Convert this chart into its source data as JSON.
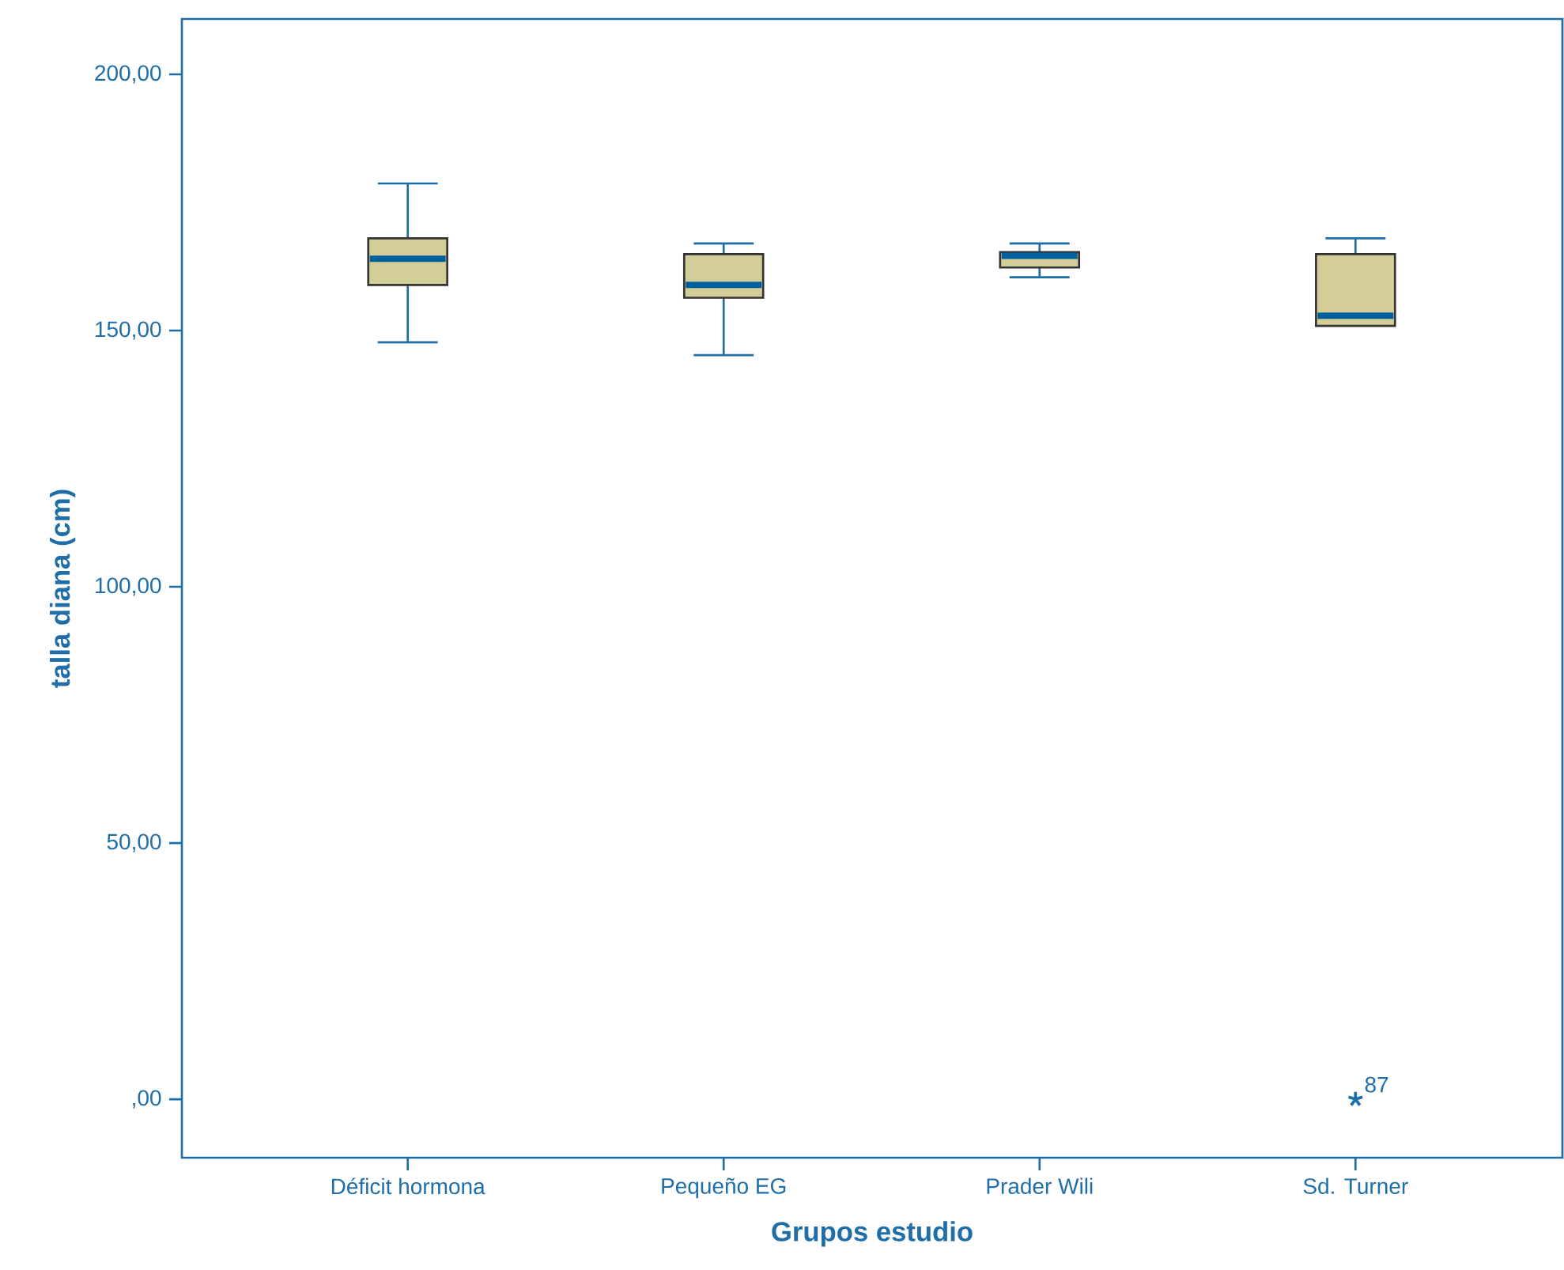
{
  "chart_data": {
    "type": "box",
    "xlabel": "Grupos estudio",
    "ylabel": "talla diana (cm)",
    "categories": [
      "Déficit hormona",
      "Pequeño EG",
      "Prader Wili",
      "Sd. Turner"
    ],
    "color": "#d3ce97",
    "marker": "star",
    "boxes": [
      {
        "low": 147.7,
        "q1": 158.9,
        "median": 164.0,
        "q3": 168.0,
        "high": 178.7
      },
      {
        "low": 145.2,
        "q1": 156.4,
        "median": 158.9,
        "q3": 164.9,
        "high": 167.0
      },
      {
        "low": 160.4,
        "q1": 162.3,
        "median": 164.6,
        "q3": 165.3,
        "high": 167.0
      },
      {
        "low": 150.9,
        "q1": 150.9,
        "median": 152.9,
        "q3": 164.9,
        "high": 168.0,
        "outliers": [
          0
        ]
      }
    ],
    "ylim": [
      -11.4,
      210.8
    ],
    "yticks": [
      {
        "value": 0,
        "label": ",00"
      },
      {
        "value": 50,
        "label": "50,00"
      },
      {
        "value": 100,
        "label": "100,00"
      },
      {
        "value": 150,
        "label": "150,00"
      },
      {
        "value": 200,
        "label": "200,00"
      }
    ],
    "annotations": [
      "87"
    ]
  }
}
